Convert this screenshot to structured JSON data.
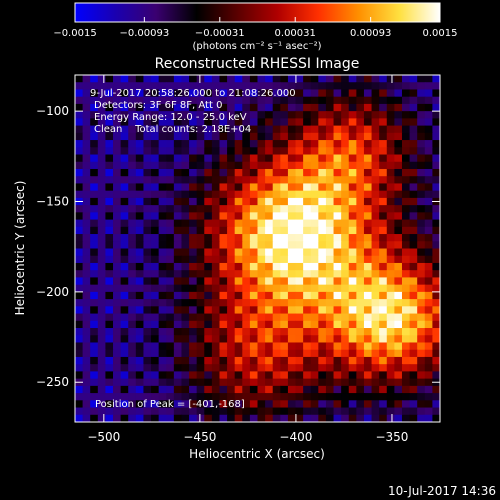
{
  "chart_data": {
    "type": "heatmap",
    "title": "Reconstructed RHESSI Image",
    "xlabel": "Heliocentric X (arcsec)",
    "ylabel": "Heliocentric Y (arcsec)",
    "xlim": [
      -515,
      -325
    ],
    "ylim": [
      -272,
      -80
    ],
    "xticks": [
      -500,
      -450,
      -400,
      -350
    ],
    "xtick_labels": [
      "−500",
      "−450",
      "−400",
      "−350"
    ],
    "yticks": [
      -100,
      -150,
      -200,
      -250
    ],
    "ytick_labels": [
      "−100",
      "−150",
      "−200",
      "−250"
    ],
    "colorbar": {
      "min": -0.0015,
      "max": 0.0015,
      "ticks": [
        -0.0015,
        -0.00093,
        -0.00031,
        0.00031,
        0.00093,
        0.0015
      ],
      "tick_labels": [
        "−0.0015",
        "−0.00093",
        "−0.00031",
        "0.00031",
        "0.00093",
        "0.0015"
      ],
      "unit_label": "(photons cm⁻² s⁻¹ asec⁻²)",
      "colors": [
        "#0000ff",
        "#1a00b0",
        "#3a0070",
        "#000000",
        "#5a0000",
        "#b00000",
        "#ff3000",
        "#ff9000",
        "#ffe040",
        "#ffffff"
      ]
    },
    "annotations": [
      "9-Jul-2017 20:58:26.000 to 21:08:26.000",
      "Detectors: 3F 6F 8F, Att 0",
      "Energy Range: 12.0 - 25.0 keV",
      "Clean    Total counts: 2.18E+04"
    ],
    "peak_label": "Position of Peak = [-401,-168]",
    "sources": [
      {
        "x": -401,
        "y": -168,
        "intensity": 1.0,
        "spread": 30
      },
      {
        "x": -350,
        "y": -215,
        "intensity": 0.85,
        "spread": 24
      },
      {
        "x": -420,
        "y": -235,
        "intensity": 0.45,
        "spread": 26
      },
      {
        "x": -370,
        "y": -120,
        "intensity": 0.45,
        "spread": 22
      }
    ],
    "background_level": -0.00093,
    "grid": false
  },
  "footer": {
    "timestamp": "10-Jul-2017 14:36"
  }
}
